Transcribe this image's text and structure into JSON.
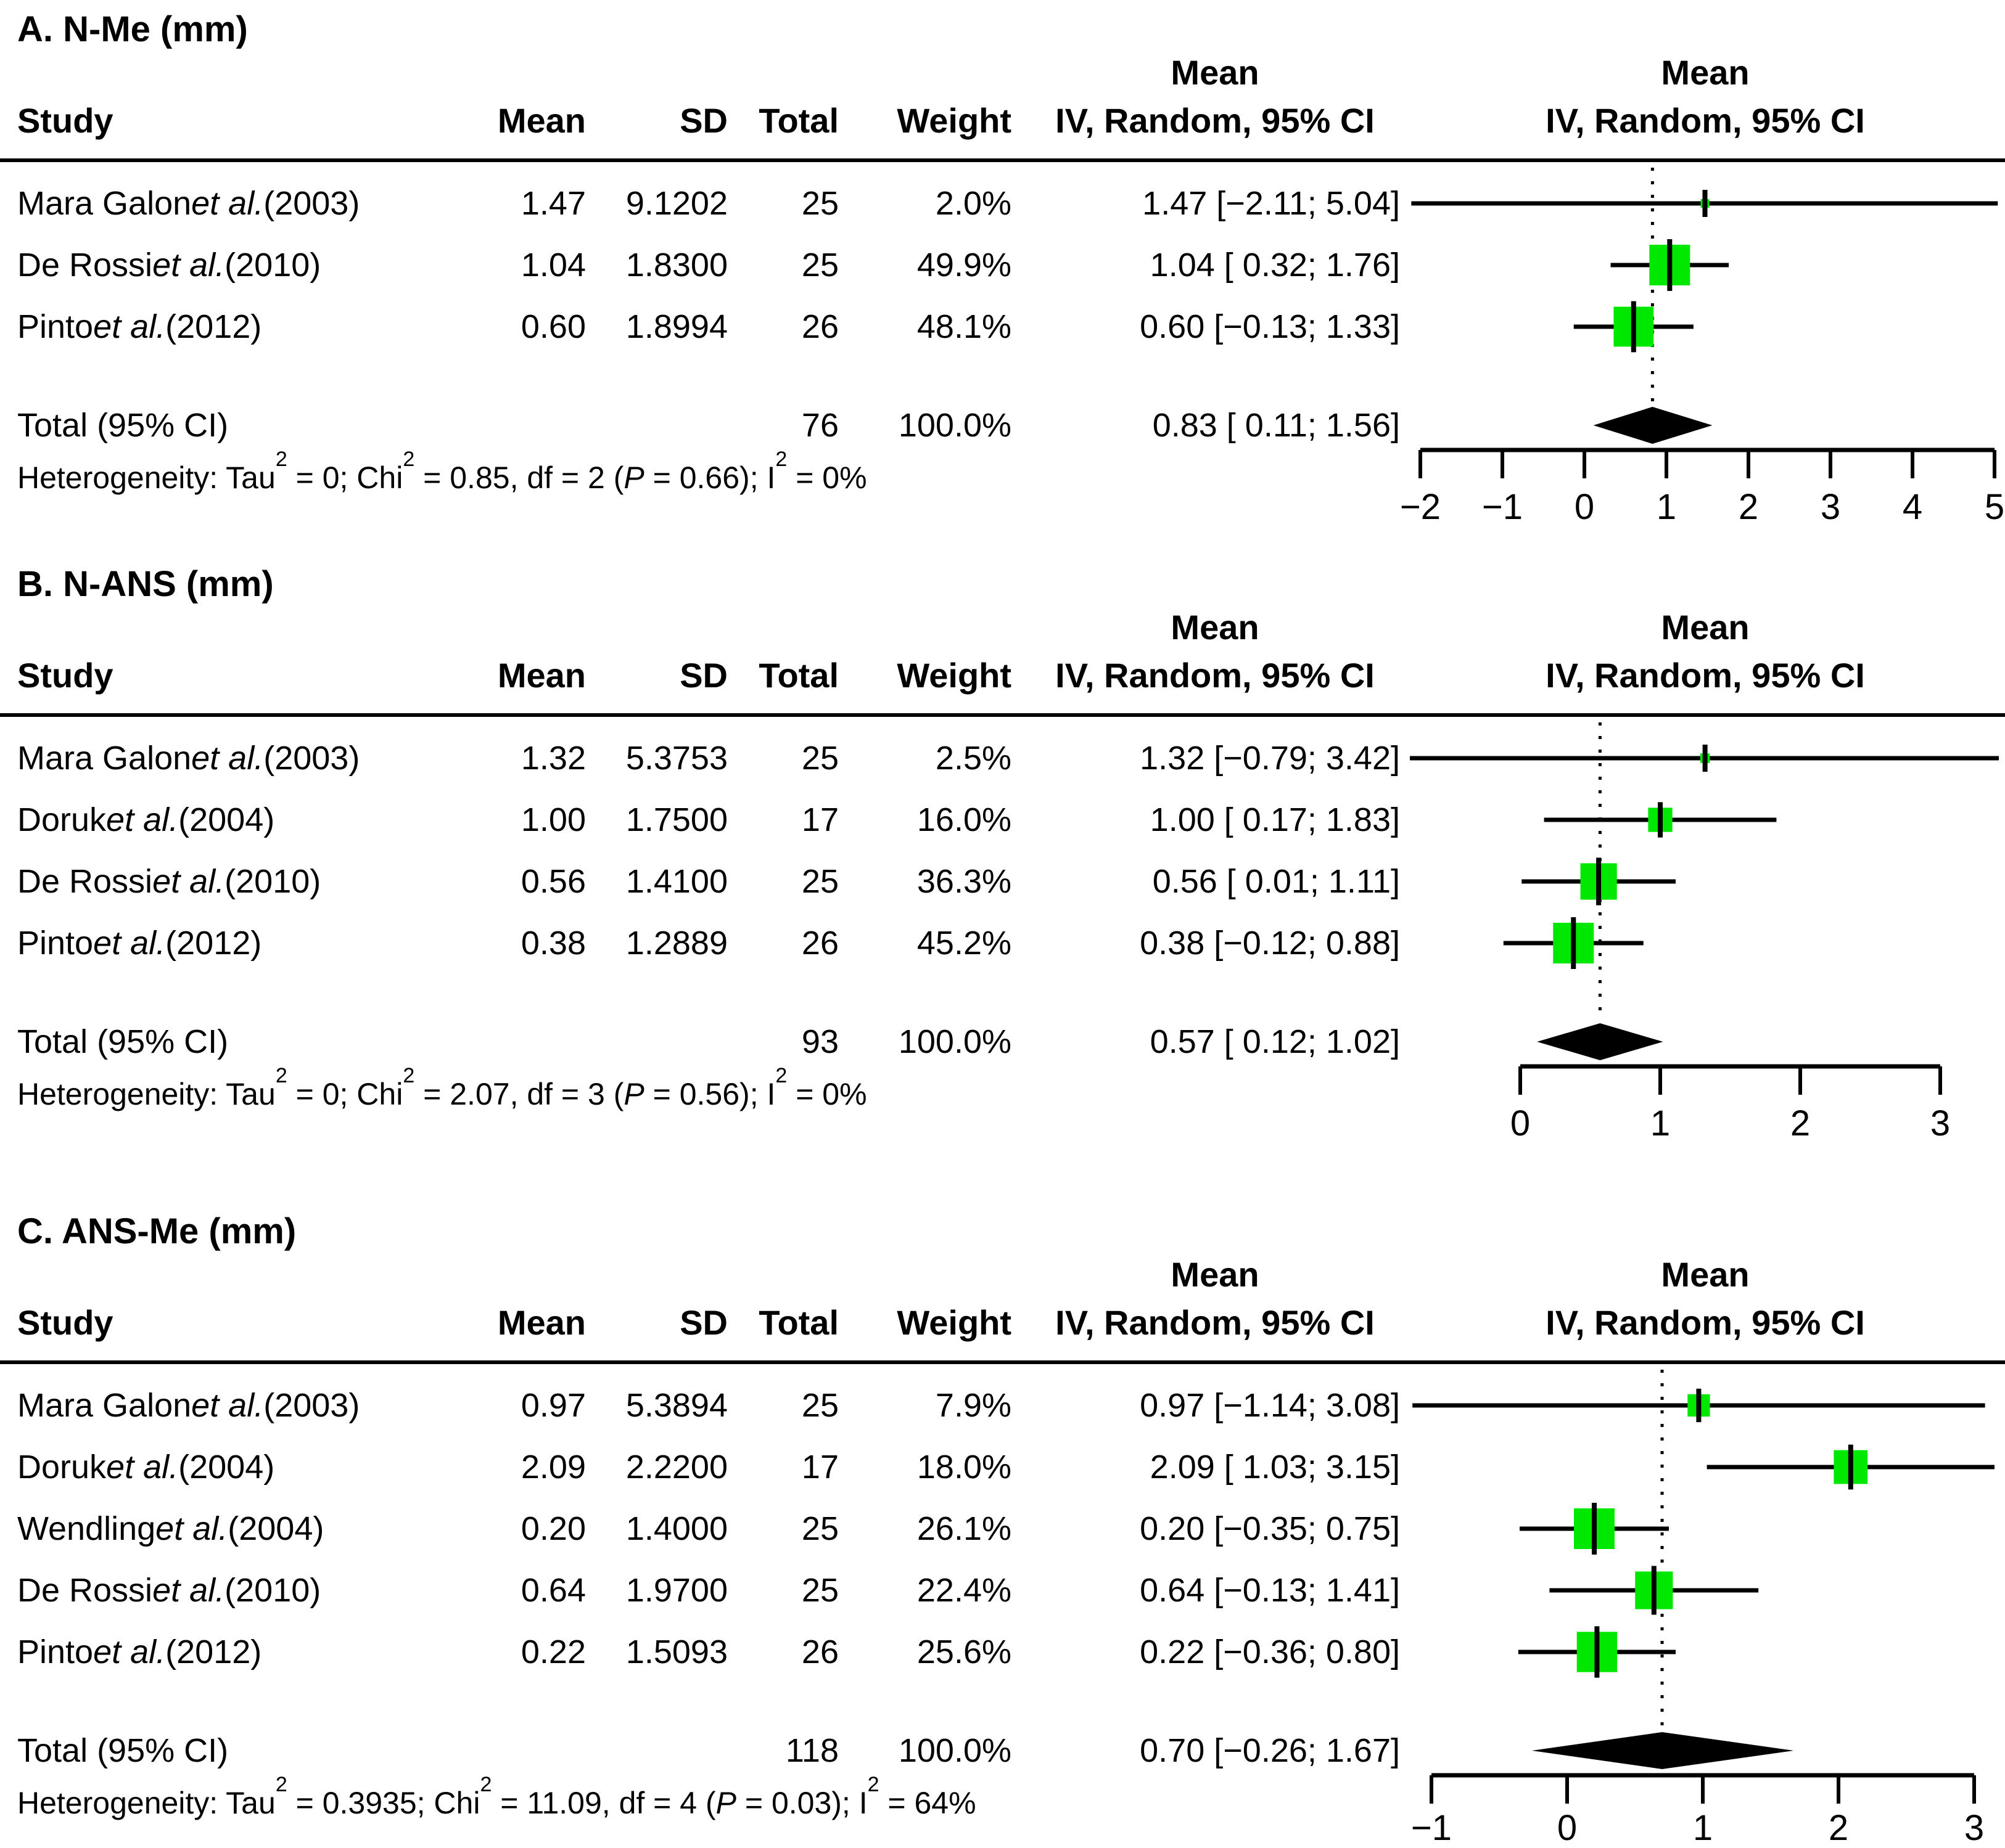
{
  "figure": {
    "background": "#ffffff",
    "text_color": "#000000"
  },
  "colors": {
    "square_fill": "#00e800",
    "ci_line": "#000000",
    "diamond_fill": "#000000",
    "axis": "#000000"
  },
  "panels": [
    {
      "title": "A. N-Me (mm)",
      "headers": {
        "study": "Study",
        "mean": "Mean",
        "sd": "SD",
        "total": "Total",
        "weight": "Weight",
        "ci": "IV, Random, 95% CI",
        "eff_top": "Mean",
        "plot_top": "Mean",
        "plot_ci": "IV, Random, 95% CI"
      },
      "studies": [
        {
          "name_pre": "Mara Galon ",
          "name_it": "et al.",
          "name_post": " (2003)",
          "mean": "1.47",
          "sd": "9.1202",
          "total": "25",
          "weight": "2.0%",
          "ci": "1.47 [−2.11; 5.04]"
        },
        {
          "name_pre": "De Rossi ",
          "name_it": "et al.",
          "name_post": " (2010)",
          "mean": "1.04",
          "sd": "1.8300",
          "total": "25",
          "weight": "49.9%",
          "ci": "1.04 [ 0.32; 1.76]"
        },
        {
          "name_pre": "Pinto ",
          "name_it": "et al.",
          "name_post": " (2012)",
          "mean": "0.60",
          "sd": "1.8994",
          "total": "26",
          "weight": "48.1%",
          "ci": "0.60 [−0.13; 1.33]"
        }
      ],
      "total_row": {
        "label": "Total (95% CI)",
        "total": "76",
        "weight": "100.0%",
        "ci": "0.83 [ 0.11; 1.56]"
      },
      "heterogeneity_parts": [
        "Heterogeneity: Tau",
        "2",
        " = 0; Chi",
        "2",
        " = 0.85, df = 2 (",
        "P",
        " = 0.66); I",
        "2",
        " = 0%"
      ]
    },
    {
      "title": "B. N-ANS (mm)",
      "headers": {
        "study": "Study",
        "mean": "Mean",
        "sd": "SD",
        "total": "Total",
        "weight": "Weight",
        "ci": "IV, Random, 95% CI",
        "eff_top": "Mean",
        "plot_top": "Mean",
        "plot_ci": "IV, Random, 95% CI"
      },
      "studies": [
        {
          "name_pre": "Mara Galon ",
          "name_it": "et al.",
          "name_post": " (2003)",
          "mean": "1.32",
          "sd": "5.3753",
          "total": "25",
          "weight": "2.5%",
          "ci": "1.32 [−0.79; 3.42]"
        },
        {
          "name_pre": "Doruk ",
          "name_it": "et al.",
          "name_post": " (2004)",
          "mean": "1.00",
          "sd": "1.7500",
          "total": "17",
          "weight": "16.0%",
          "ci": "1.00 [ 0.17; 1.83]"
        },
        {
          "name_pre": "De Rossi ",
          "name_it": "et al.",
          "name_post": " (2010)",
          "mean": "0.56",
          "sd": "1.4100",
          "total": "25",
          "weight": "36.3%",
          "ci": "0.56 [ 0.01; 1.11]"
        },
        {
          "name_pre": "Pinto ",
          "name_it": "et al.",
          "name_post": " (2012)",
          "mean": "0.38",
          "sd": "1.2889",
          "total": "26",
          "weight": "45.2%",
          "ci": "0.38 [−0.12; 0.88]"
        }
      ],
      "total_row": {
        "label": "Total (95% CI)",
        "total": "93",
        "weight": "100.0%",
        "ci": "0.57 [ 0.12; 1.02]"
      },
      "heterogeneity_parts": [
        "Heterogeneity: Tau",
        "2",
        " = 0; Chi",
        "2",
        " = 2.07, df = 3 (",
        "P",
        " = 0.56); I",
        "2",
        " = 0%"
      ]
    },
    {
      "title": "C. ANS-Me (mm)",
      "headers": {
        "study": "Study",
        "mean": "Mean",
        "sd": "SD",
        "total": "Total",
        "weight": "Weight",
        "ci": "IV, Random, 95% CI",
        "eff_top": "Mean",
        "plot_top": "Mean",
        "plot_ci": "IV, Random, 95% CI"
      },
      "studies": [
        {
          "name_pre": "Mara Galon ",
          "name_it": "et al.",
          "name_post": " (2003)",
          "mean": "0.97",
          "sd": "5.3894",
          "total": "25",
          "weight": "7.9%",
          "ci": "0.97 [−1.14; 3.08]"
        },
        {
          "name_pre": "Doruk ",
          "name_it": "et al.",
          "name_post": " (2004)",
          "mean": "2.09",
          "sd": "2.2200",
          "total": "17",
          "weight": "18.0%",
          "ci": "2.09 [ 1.03; 3.15]"
        },
        {
          "name_pre": "Wendling ",
          "name_it": "et al.",
          "name_post": " (2004)",
          "mean": "0.20",
          "sd": "1.4000",
          "total": "25",
          "weight": "26.1%",
          "ci": "0.20 [−0.35; 0.75]"
        },
        {
          "name_pre": "De Rossi ",
          "name_it": "et al.",
          "name_post": " (2010)",
          "mean": "0.64",
          "sd": "1.9700",
          "total": "25",
          "weight": "22.4%",
          "ci": "0.64 [−0.13; 1.41]"
        },
        {
          "name_pre": "Pinto ",
          "name_it": "et al.",
          "name_post": " (2012)",
          "mean": "0.22",
          "sd": "1.5093",
          "total": "26",
          "weight": "25.6%",
          "ci": "0.22 [−0.36; 0.80]"
        }
      ],
      "total_row": {
        "label": "Total (95% CI)",
        "total": "118",
        "weight": "100.0%",
        "ci": "0.70 [−0.26; 1.67]"
      },
      "heterogeneity_parts": [
        "Heterogeneity: Tau",
        "2",
        " = 0.3935; Chi",
        "2",
        " = 11.09, df = 4 (",
        "P",
        " = 0.03); I",
        "2",
        " = 64%"
      ]
    }
  ],
  "chart_data": [
    {
      "type": "forest",
      "title": "A. N-Me (mm)",
      "effect_label": "Mean IV, Random, 95% CI",
      "xlim": [
        -2,
        5
      ],
      "ticks": [
        -2,
        -1,
        0,
        1,
        2,
        3,
        4,
        5
      ],
      "studies": [
        {
          "label": "Mara Galon et al. (2003)",
          "mean": 1.47,
          "lower": -2.11,
          "upper": 5.04,
          "weight": 2.0
        },
        {
          "label": "De Rossi et al. (2010)",
          "mean": 1.04,
          "lower": 0.32,
          "upper": 1.76,
          "weight": 49.9
        },
        {
          "label": "Pinto et al. (2012)",
          "mean": 0.6,
          "lower": -0.13,
          "upper": 1.33,
          "weight": 48.1
        }
      ],
      "pooled": {
        "label": "Total (95% CI)",
        "mean": 0.83,
        "lower": 0.11,
        "upper": 1.56
      }
    },
    {
      "type": "forest",
      "title": "B. N-ANS (mm)",
      "effect_label": "Mean IV, Random, 95% CI",
      "xlim": [
        0,
        3
      ],
      "ticks": [
        0,
        1,
        2,
        3
      ],
      "studies": [
        {
          "label": "Mara Galon et al. (2003)",
          "mean": 1.32,
          "lower": -0.79,
          "upper": 3.42,
          "weight": 2.5
        },
        {
          "label": "Doruk et al. (2004)",
          "mean": 1.0,
          "lower": 0.17,
          "upper": 1.83,
          "weight": 16.0
        },
        {
          "label": "De Rossi et al. (2010)",
          "mean": 0.56,
          "lower": 0.01,
          "upper": 1.11,
          "weight": 36.3
        },
        {
          "label": "Pinto et al. (2012)",
          "mean": 0.38,
          "lower": -0.12,
          "upper": 0.88,
          "weight": 45.2
        }
      ],
      "pooled": {
        "label": "Total (95% CI)",
        "mean": 0.57,
        "lower": 0.12,
        "upper": 1.02
      }
    },
    {
      "type": "forest",
      "title": "C. ANS-Me (mm)",
      "effect_label": "Mean IV, Random, 95% CI",
      "xlim": [
        -1,
        3
      ],
      "ticks": [
        -1,
        0,
        1,
        2,
        3
      ],
      "studies": [
        {
          "label": "Mara Galon et al. (2003)",
          "mean": 0.97,
          "lower": -1.14,
          "upper": 3.08,
          "weight": 7.9
        },
        {
          "label": "Doruk et al. (2004)",
          "mean": 2.09,
          "lower": 1.03,
          "upper": 3.15,
          "weight": 18.0
        },
        {
          "label": "Wendling et al. (2004)",
          "mean": 0.2,
          "lower": -0.35,
          "upper": 0.75,
          "weight": 26.1
        },
        {
          "label": "De Rossi et al. (2010)",
          "mean": 0.64,
          "lower": -0.13,
          "upper": 1.41,
          "weight": 22.4
        },
        {
          "label": "Pinto et al. (2012)",
          "mean": 0.22,
          "lower": -0.36,
          "upper": 0.8,
          "weight": 25.6
        }
      ],
      "pooled": {
        "label": "Total (95% CI)",
        "mean": 0.7,
        "lower": -0.26,
        "upper": 1.67
      }
    }
  ]
}
